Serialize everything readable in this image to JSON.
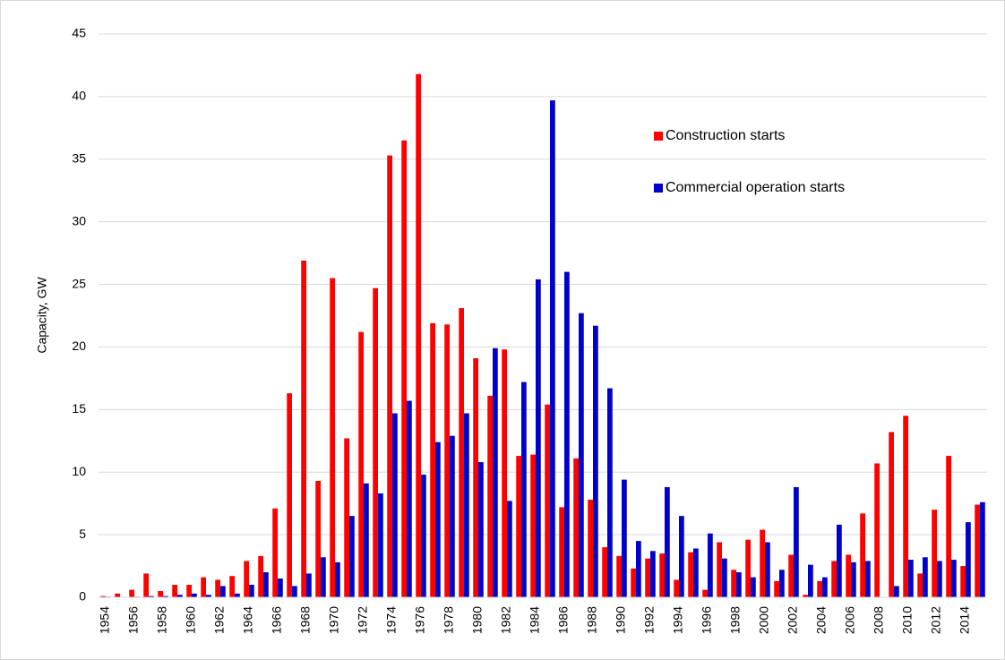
{
  "chart_data": {
    "type": "bar",
    "y_label": "Capacity, GW",
    "categories": [
      "1954",
      null,
      "1956",
      null,
      "1958",
      null,
      "1960",
      null,
      "1962",
      null,
      "1964",
      null,
      "1966",
      null,
      "1968",
      null,
      "1970",
      null,
      "1972",
      null,
      "1974",
      null,
      "1976",
      null,
      "1978",
      null,
      "1980",
      null,
      "1982",
      null,
      "1984",
      null,
      "1986",
      null,
      "1988",
      null,
      "1990",
      null,
      "1992",
      null,
      "1994",
      null,
      "1996",
      null,
      "1998",
      null,
      "2000",
      null,
      "2002",
      null,
      "2004",
      null,
      "2006",
      null,
      "2008",
      null,
      "2010",
      null,
      "2012",
      null,
      "2014",
      null
    ],
    "series": [
      {
        "name": "Construction starts",
        "color": "#ff0000",
        "values": [
          0.1,
          0.3,
          0.6,
          1.9,
          0.5,
          1.0,
          1.0,
          1.6,
          1.4,
          1.7,
          2.9,
          3.3,
          7.1,
          16.3,
          26.9,
          9.3,
          25.5,
          12.7,
          21.2,
          24.7,
          35.3,
          36.5,
          41.8,
          21.9,
          21.8,
          23.1,
          19.1,
          16.1,
          19.8,
          11.3,
          11.4,
          15.4,
          7.2,
          11.1,
          7.8,
          4.0,
          3.3,
          2.3,
          3.1,
          3.5,
          1.4,
          3.6,
          0.6,
          4.4,
          2.2,
          4.6,
          5.4,
          1.3,
          3.4,
          0.2,
          1.3,
          2.9,
          3.4,
          6.7,
          10.7,
          13.2,
          14.5,
          1.9,
          7.0,
          11.3,
          2.5,
          7.4
        ]
      },
      {
        "name": "Commercial operation starts",
        "color": "#0000cc",
        "values": [
          0.05,
          0,
          0.05,
          0.1,
          0.1,
          0.2,
          0.3,
          0.2,
          0.9,
          0.3,
          1.0,
          2.0,
          1.5,
          0.9,
          1.9,
          3.2,
          2.8,
          6.5,
          9.1,
          8.3,
          14.7,
          15.7,
          9.8,
          12.4,
          12.9,
          14.7,
          10.8,
          19.9,
          7.7,
          17.2,
          25.4,
          39.7,
          26.0,
          22.7,
          21.7,
          16.7,
          9.4,
          4.5,
          3.7,
          8.8,
          6.5,
          3.9,
          5.1,
          3.1,
          2.0,
          1.6,
          4.4,
          2.2,
          8.8,
          2.6,
          1.6,
          5.8,
          2.8,
          2.9,
          0,
          0.9,
          3.0,
          3.2,
          2.9,
          3.0,
          6.0,
          7.6
        ]
      }
    ],
    "ylim": [
      0,
      45
    ],
    "yticks": [
      0,
      5,
      10,
      15,
      20,
      25,
      30,
      35,
      40,
      45
    ],
    "grid": true
  }
}
